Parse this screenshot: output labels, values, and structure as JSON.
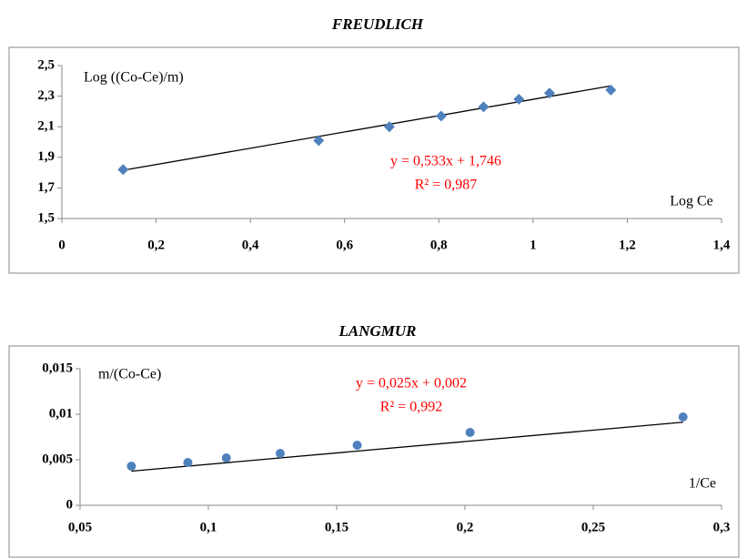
{
  "chart_data": [
    {
      "type": "scatter",
      "title": "FREUDLICH",
      "y_label": "Log ((Co-Ce)/m)",
      "x_label": "Log Ce",
      "x": [
        0.13,
        0.545,
        0.695,
        0.805,
        0.895,
        0.97,
        1.035,
        1.165
      ],
      "series": [
        {
          "color": "#4f81bd",
          "marker": "diamond",
          "values": [
            1.82,
            2.01,
            2.1,
            2.17,
            2.23,
            2.28,
            2.32,
            2.34
          ]
        }
      ],
      "trendline": {
        "color": "#000000",
        "slope": 0.533,
        "intercept": 1.746,
        "equation": "y = 0,533x + 1,746",
        "r2": "R² = 0,987",
        "label_color": "#ff0000"
      },
      "xlim": [
        0,
        1.4
      ],
      "xticks": [
        0,
        {
          "value": 0.2,
          "label": "0,2"
        },
        {
          "value": 0.4,
          "label": "0,4"
        },
        {
          "value": 0.6,
          "label": "0,6"
        },
        {
          "value": 0.8,
          "label": "0,8"
        },
        1,
        {
          "value": 1.2,
          "label": "1,2"
        },
        {
          "value": 1.4,
          "label": "1,4"
        }
      ],
      "ylim": [
        1.5,
        2.5
      ],
      "yticks": [
        {
          "value": 1.5,
          "label": "1,5"
        },
        {
          "value": 1.7,
          "label": "1,7"
        },
        {
          "value": 1.9,
          "label": "1,9"
        },
        {
          "value": 2.1,
          "label": "2,1"
        },
        {
          "value": 2.3,
          "label": "2,3"
        },
        {
          "value": 2.5,
          "label": "2,5"
        }
      ],
      "grid": false
    },
    {
      "type": "scatter",
      "title": "LANGMUR",
      "y_label": "m/(Co-Ce)",
      "x_label": "1/Ce",
      "x": [
        0.07,
        0.092,
        0.107,
        0.128,
        0.158,
        0.202,
        0.285
      ],
      "series": [
        {
          "color": "#4f81bd",
          "marker": "circle",
          "values": [
            0.0043,
            0.0047,
            0.0052,
            0.0057,
            0.0066,
            0.008,
            0.0097
          ]
        }
      ],
      "trendline": {
        "color": "#000000",
        "slope": 0.025,
        "intercept": 0.002,
        "equation": "y = 0,025x + 0,002",
        "r2": "R² = 0,992",
        "label_color": "#ff0000"
      },
      "xlim": [
        0.05,
        0.3
      ],
      "xticks": [
        {
          "value": 0.05,
          "label": "0,05"
        },
        {
          "value": 0.1,
          "label": "0,1"
        },
        {
          "value": 0.15,
          "label": "0,15"
        },
        {
          "value": 0.2,
          "label": "0,2"
        },
        {
          "value": 0.25,
          "label": "0,25"
        },
        {
          "value": 0.3,
          "label": "0,3"
        }
      ],
      "ylim": [
        0,
        0.015
      ],
      "yticks": [
        0,
        {
          "value": 0.005,
          "label": "0,005"
        },
        {
          "value": 0.01,
          "label": "0,01"
        },
        {
          "value": 0.015,
          "label": "0,015"
        }
      ],
      "grid": false
    }
  ]
}
